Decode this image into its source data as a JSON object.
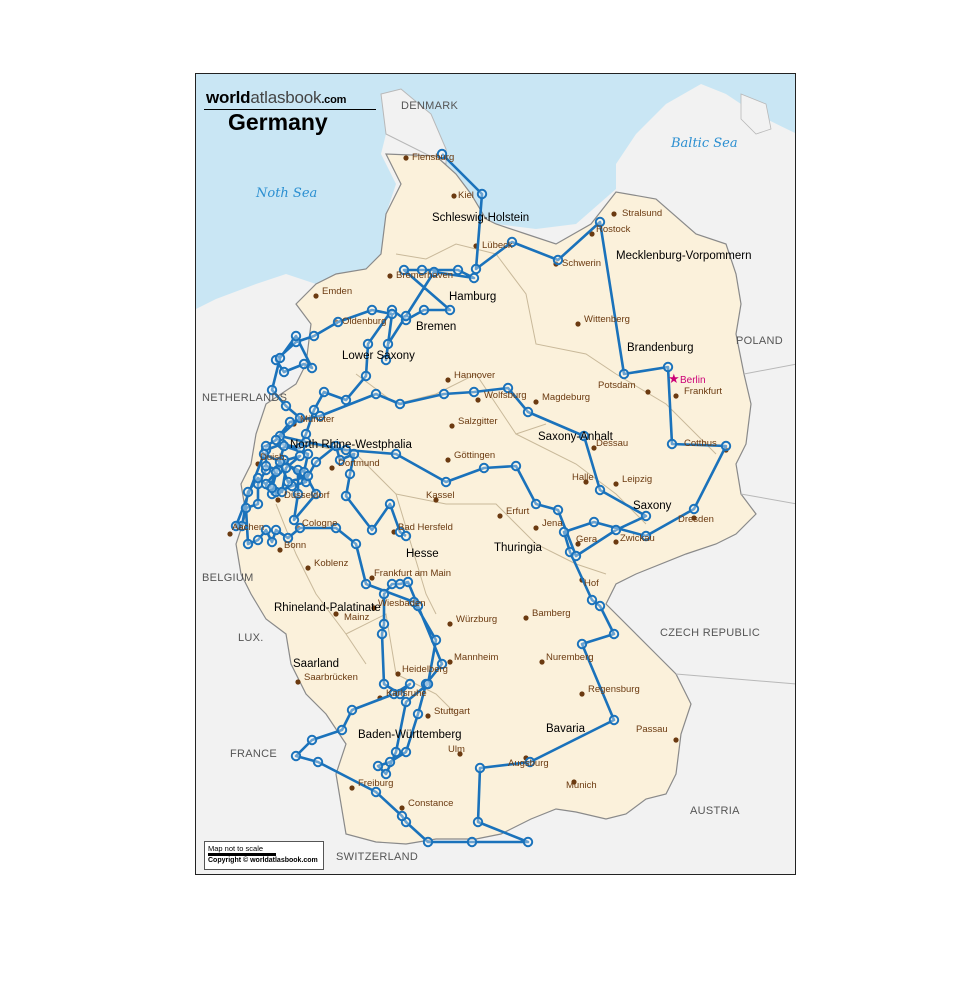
{
  "map": {
    "brand_bold": "world",
    "brand_thin": "atlasbook",
    "brand_suffix": ".com",
    "title": "Germany",
    "scale_note": "Map not to scale",
    "copyright": "Copyright © worldatlasbook.com",
    "colors": {
      "land": "#fbf1db",
      "neighbor": "#f2f2f2",
      "water": "#c9e6f4",
      "route": "#1a72bb",
      "city_dot": "#6b3a10",
      "capital": "#cc0077"
    },
    "countries": [
      "DENMARK",
      "POLAND",
      "NETHERLANDS",
      "BELGIUM",
      "LUX.",
      "FRANCE",
      "CZECH REPUBLIC",
      "AUSTRIA",
      "SWITZERLAND"
    ],
    "seas": [
      "Noth Sea",
      "Baltic Sea"
    ],
    "states": [
      "Schleswig-Holstein",
      "Hamburg",
      "Mecklenburg-Vorpommern",
      "Lower Saxony",
      "Bremen",
      "Brandenburg",
      "Saxony-Anhalt",
      "North Rhine-Westphalia",
      "Saxony",
      "Thuringia",
      "Hesse",
      "Rhineland-Palatinate",
      "Saarland",
      "Baden-Württemberg",
      "Bavaria"
    ],
    "capital": "Berlin",
    "cities": [
      "Flensburg",
      "Kiel",
      "Stralsund",
      "Lübeck",
      "Rostock",
      "Schwerin",
      "Bremerhaven",
      "Emden",
      "Oldenburg",
      "Wittenberg",
      "Potsdam",
      "Hannover",
      "Frankfurt",
      "Wolfsburg",
      "Magdeburg",
      "Münster",
      "Salzgitter",
      "Dessau",
      "Cottbus",
      "Duisb.",
      "Dortmund",
      "Göttingen",
      "Halle",
      "Leipzig",
      "Düsseldorf",
      "Kassel",
      "Erfurt",
      "Jena",
      "Dresden",
      "Aachen",
      "Cologne",
      "Bad Hersfeld",
      "Gera",
      "Zwickau",
      "Bonn",
      "Koblenz",
      "Frankfurt am Main",
      "Hof",
      "Wiesbaden",
      "Mainz",
      "Bamberg",
      "Würzburg",
      "Nuremberg",
      "Mannheim",
      "Heidelberg",
      "Saarbrücken",
      "Regensburg",
      "Karlsruhe",
      "Stuttgart",
      "Passau",
      "Ulm",
      "Augsburg",
      "Munich",
      "Freiburg",
      "Constance"
    ]
  }
}
